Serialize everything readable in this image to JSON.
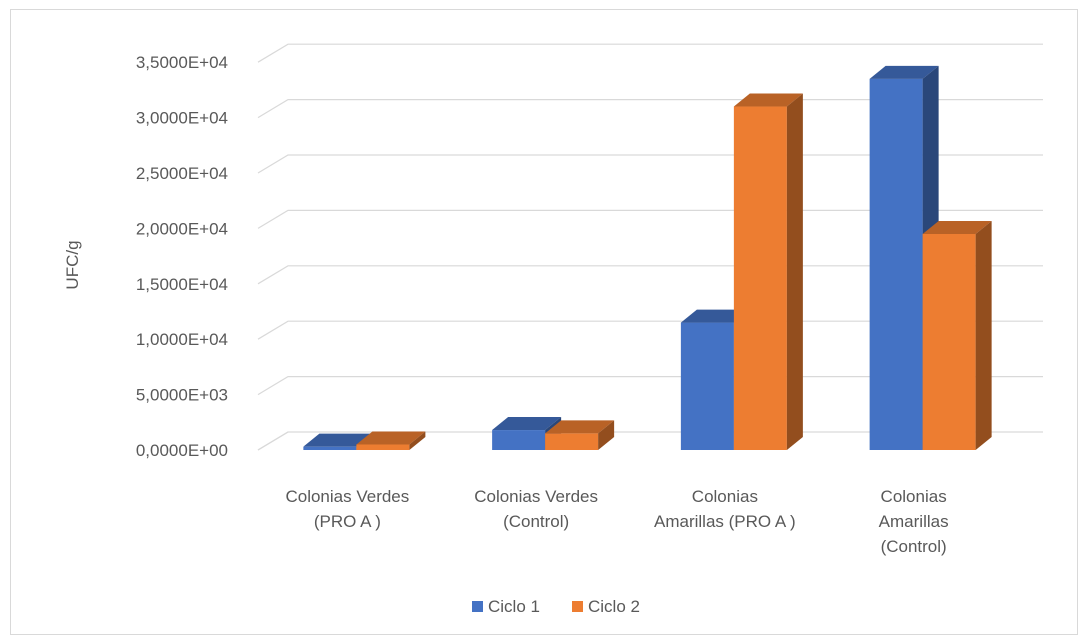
{
  "chart_data": {
    "type": "bar",
    "subtype": "3d-clustered-column",
    "title": "",
    "xlabel": "",
    "ylabel": "UFC/g",
    "ylim": [
      0,
      35000
    ],
    "yticks": [
      "0,0000E+00",
      "5,0000E+03",
      "1,0000E+04",
      "1,5000E+04",
      "2,0000E+04",
      "2,5000E+04",
      "3,0000E+04",
      "3,5000E+04"
    ],
    "categories": [
      [
        "Colonias Verdes",
        "(PRO A )"
      ],
      [
        "Colonias Verdes",
        "(Control)"
      ],
      [
        "Colonias",
        "Amarillas (PRO A )"
      ],
      [
        "Colonias",
        "Amarillas",
        "(Control)"
      ]
    ],
    "series": [
      {
        "name": "Ciclo 1",
        "color": "#4472c4",
        "values": [
          300,
          1800,
          11500,
          33500
        ]
      },
      {
        "name": "Ciclo 2",
        "color": "#ed7d31",
        "values": [
          500,
          1500,
          31000,
          19500
        ]
      }
    ],
    "grid": true,
    "legend": "bottom"
  }
}
